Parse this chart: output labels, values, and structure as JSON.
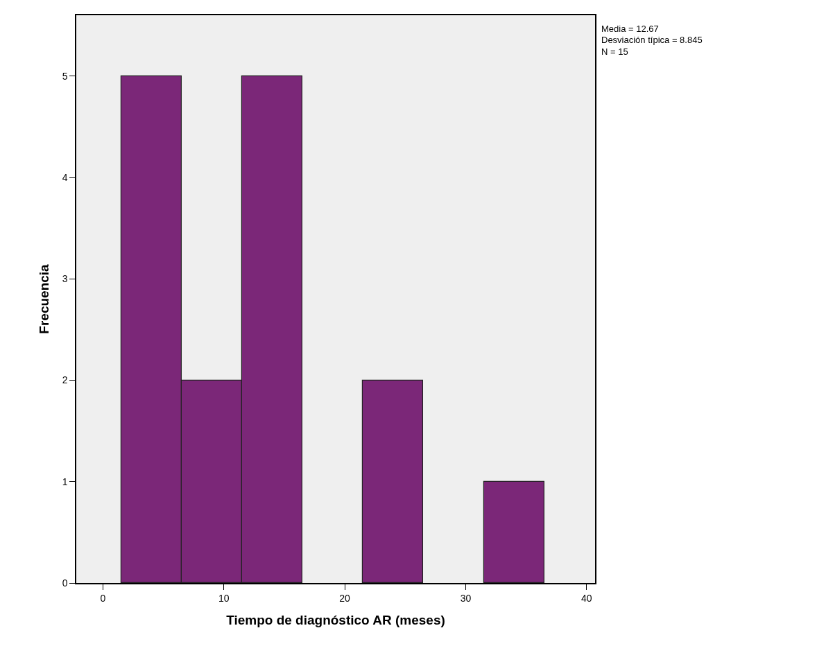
{
  "chart_data": {
    "type": "histogram",
    "xlabel": "Tiempo de diagnóstico AR (meses)",
    "ylabel": "Frecuencia",
    "bins": [
      1.5,
      6.5,
      11.5,
      16.5,
      21.5,
      26.5,
      31.5,
      36.5
    ],
    "values": [
      5,
      2,
      5,
      0,
      2,
      0,
      1
    ],
    "color": "#7b2778",
    "xlim": [
      -2.2,
      40.7
    ],
    "xticks": [
      0,
      10,
      20,
      30,
      40
    ],
    "ylim": [
      0,
      5.6
    ],
    "yticks": [
      0,
      1,
      2,
      3,
      4,
      5
    ],
    "grid": false,
    "annotations": [
      "Media = 12.67",
      "Desviación típica = 8.845",
      "N = 15"
    ]
  }
}
